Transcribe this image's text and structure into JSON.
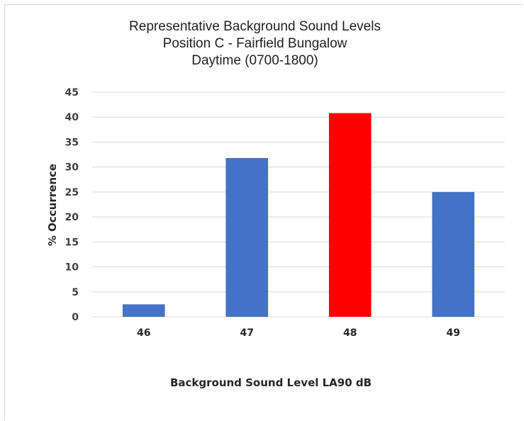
{
  "chart_data": {
    "type": "bar",
    "title_lines": [
      "Representative  Background  Sound Levels",
      "Position C - Fairfield Bungalow",
      "Daytime (0700-1800)"
    ],
    "xlabel": "Background Sound Level LA90 dB",
    "ylabel": "% Occurrence",
    "categories": [
      "46",
      "47",
      "48",
      "49"
    ],
    "values": [
      2.5,
      31.8,
      40.8,
      25.0
    ],
    "bar_colors": [
      "#4472c4",
      "#4472c4",
      "#ff0000",
      "#4472c4"
    ],
    "ylim": [
      0,
      45
    ],
    "yticks": [
      0,
      5,
      10,
      15,
      20,
      25,
      30,
      35,
      40,
      45
    ],
    "grid": true,
    "gridline_color": "#d9d9d9"
  }
}
